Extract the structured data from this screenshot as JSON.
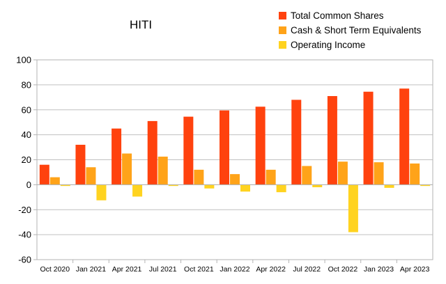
{
  "chart_data": {
    "type": "bar",
    "title": "HITI",
    "xlabel": "",
    "ylabel": "",
    "ylim": [
      -60,
      100
    ],
    "yticks": [
      -60,
      -40,
      -20,
      0,
      20,
      40,
      60,
      80,
      100
    ],
    "grid": "horizontal",
    "legend_position": "top-right",
    "categories": [
      "Oct 2020",
      "Jan 2021",
      "Apr 2021",
      "Jul 2021",
      "Oct 2021",
      "Jan 2022",
      "Apr 2022",
      "Jul 2022",
      "Oct 2022",
      "Jan 2023",
      "Apr 2023"
    ],
    "series": [
      {
        "name": "Total Common Shares",
        "color": "#ff420e",
        "values": [
          16,
          32,
          45,
          51,
          54.5,
          59.5,
          62.5,
          68,
          71,
          74.5,
          77
        ]
      },
      {
        "name": "Cash & Short Term Equivalents",
        "color": "#ffa319",
        "values": [
          6,
          14,
          25,
          22.5,
          12,
          8.5,
          12,
          15,
          18.5,
          18,
          17
        ]
      },
      {
        "name": "Operating Income",
        "color": "#ffd320",
        "values": [
          -1,
          -12.5,
          -9.5,
          -1,
          -3,
          -5.5,
          -6,
          -2,
          -38,
          -2.5,
          -1
        ]
      }
    ]
  }
}
